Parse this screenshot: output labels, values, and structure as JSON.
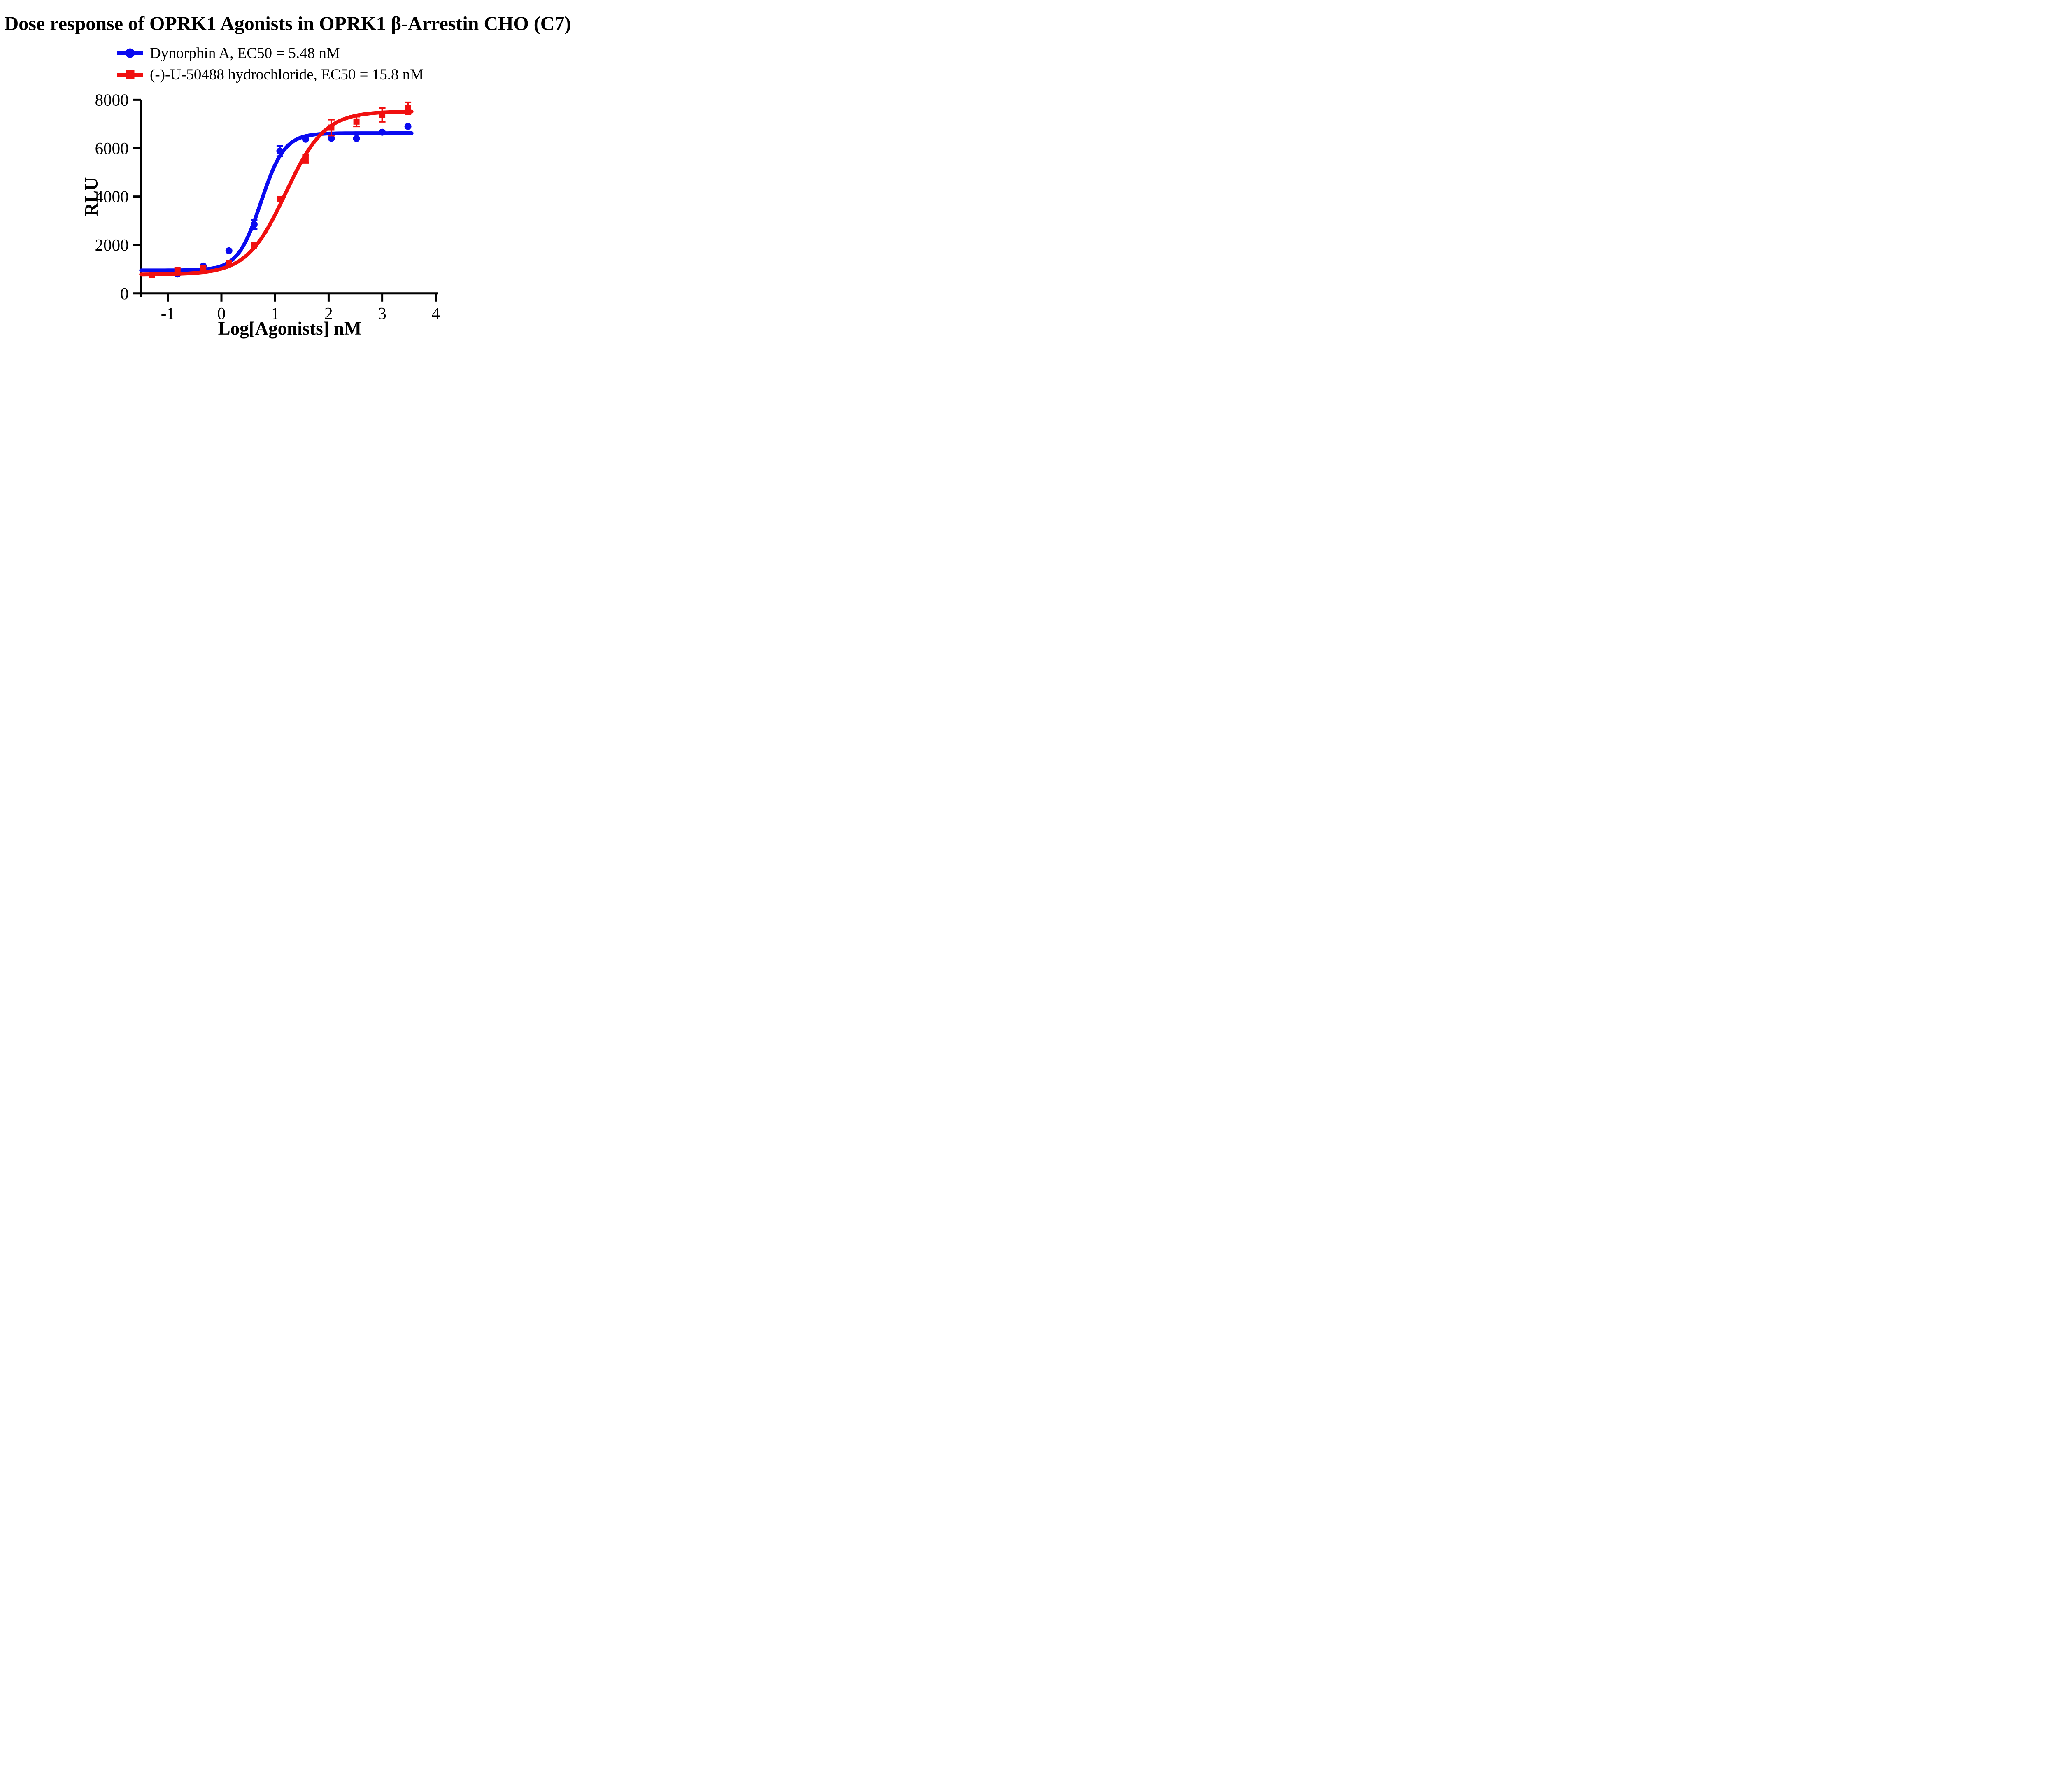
{
  "title": "Dose response of OPRK1 Agonists in OPRK1 β-Arrestin CHO (C7)",
  "legend": {
    "items": [
      {
        "label": "Dynorphin A, EC50 = 5.48 nM",
        "color": "#0a0af0",
        "marker": "circle"
      },
      {
        "label": "(-)-U-50488 hydrochloride, EC50 = 15.8 nM",
        "color": "#f01010",
        "marker": "square"
      }
    ]
  },
  "axes": {
    "x_title": "Log[Agonists] nM",
    "y_title": "RLU"
  },
  "chart_data": {
    "type": "scatter",
    "title": "Dose response of OPRK1 Agonists in OPRK1 β-Arrestin CHO (C7)",
    "xlabel": "Log[Agonists] nM",
    "ylabel": "RLU",
    "xlim": [
      -1.5,
      4
    ],
    "ylim": [
      0,
      8000
    ],
    "x_ticks": [
      -1,
      0,
      1,
      2,
      3,
      4
    ],
    "y_ticks": [
      0,
      2000,
      4000,
      6000,
      8000
    ],
    "grid": false,
    "legend_position": "top-left",
    "x": [
      -1.3,
      -0.82,
      -0.34,
      0.14,
      0.61,
      1.09,
      1.57,
      2.05,
      2.52,
      3.0,
      3.48
    ],
    "series": [
      {
        "name": "Dynorphin A",
        "ec50_nM": 5.48,
        "color": "#0a0af0",
        "marker": "circle",
        "values": [
          null,
          800,
          1130,
          1760,
          2850,
          5880,
          6370,
          6410,
          6400,
          6660,
          6900
        ],
        "errors": [
          null,
          null,
          null,
          null,
          190,
          210,
          null,
          null,
          null,
          null,
          null
        ],
        "fit": {
          "bottom": 950,
          "top": 6620,
          "logEC50": 0.74,
          "hill": 2.0,
          "x_start": -1.5,
          "x_end": 3.55
        }
      },
      {
        "name": "(-)-U-50488 hydrochloride",
        "ec50_nM": 15.8,
        "color": "#f01010",
        "marker": "square",
        "values": [
          760,
          960,
          1030,
          1250,
          1980,
          3900,
          5550,
          6850,
          7100,
          7370,
          7650
        ],
        "errors": [
          null,
          null,
          null,
          null,
          null,
          null,
          160,
          330,
          200,
          280,
          240
        ],
        "fit": {
          "bottom": 780,
          "top": 7520,
          "logEC50": 1.2,
          "hill": 1.2,
          "x_start": -1.5,
          "x_end": 3.55
        }
      }
    ]
  }
}
